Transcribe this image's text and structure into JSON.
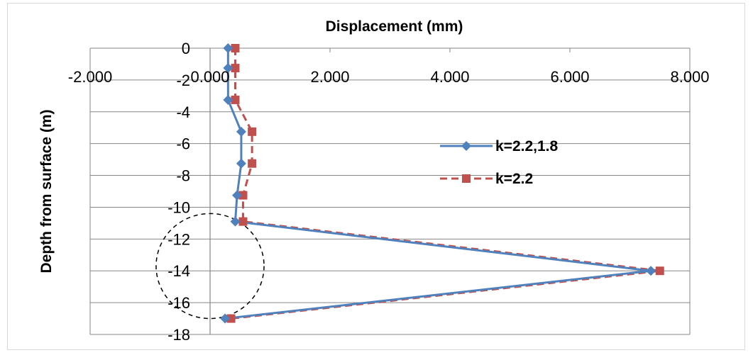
{
  "chart_data": {
    "type": "line",
    "title": "Displacement (mm)",
    "xlabel": "Displacement (mm)",
    "ylabel": "Depth from surface (m)",
    "xlim": [
      -2,
      8
    ],
    "ylim": [
      -18,
      0
    ],
    "x_ticks": [
      "-2.000",
      "0.000",
      "2.000",
      "4.000",
      "6.000",
      "8.000"
    ],
    "y_ticks": [
      "0",
      "-2",
      "-4",
      "-6",
      "-8",
      "-10",
      "-12",
      "-14",
      "-16",
      "-18"
    ],
    "x_tick_values": [
      -2,
      0,
      2,
      4,
      6,
      8
    ],
    "y_tick_values": [
      0,
      -2,
      -4,
      -6,
      -8,
      -10,
      -12,
      -14,
      -16,
      -18
    ],
    "grid": true,
    "legend_position": "right",
    "series": [
      {
        "name": "k=2.2,1.8",
        "color": "#4f81bd",
        "marker": "diamond",
        "style": "solid",
        "points": [
          {
            "x": 0.3,
            "y": 0
          },
          {
            "x": 0.3,
            "y": -1.25
          },
          {
            "x": 0.3,
            "y": -3.25
          },
          {
            "x": 0.52,
            "y": -5.25
          },
          {
            "x": 0.52,
            "y": -7.25
          },
          {
            "x": 0.45,
            "y": -9.25
          },
          {
            "x": 0.42,
            "y": -10.9
          },
          {
            "x": 7.35,
            "y": -14
          },
          {
            "x": 0.25,
            "y": -17
          }
        ]
      },
      {
        "name": "k=2.2",
        "color": "#c0504d",
        "marker": "square",
        "style": "dashed",
        "points": [
          {
            "x": 0.42,
            "y": 0
          },
          {
            "x": 0.42,
            "y": -1.25
          },
          {
            "x": 0.42,
            "y": -3.25
          },
          {
            "x": 0.7,
            "y": -5.25
          },
          {
            "x": 0.7,
            "y": -7.25
          },
          {
            "x": 0.55,
            "y": -9.25
          },
          {
            "x": 0.55,
            "y": -10.9
          },
          {
            "x": 7.5,
            "y": -14
          },
          {
            "x": 0.35,
            "y": -17
          }
        ]
      }
    ],
    "annotations": [
      {
        "shape": "dashed-circle",
        "center_x": 0,
        "center_y": -13.7,
        "radius_x": 0.9,
        "radius_y": 3.3
      }
    ]
  }
}
